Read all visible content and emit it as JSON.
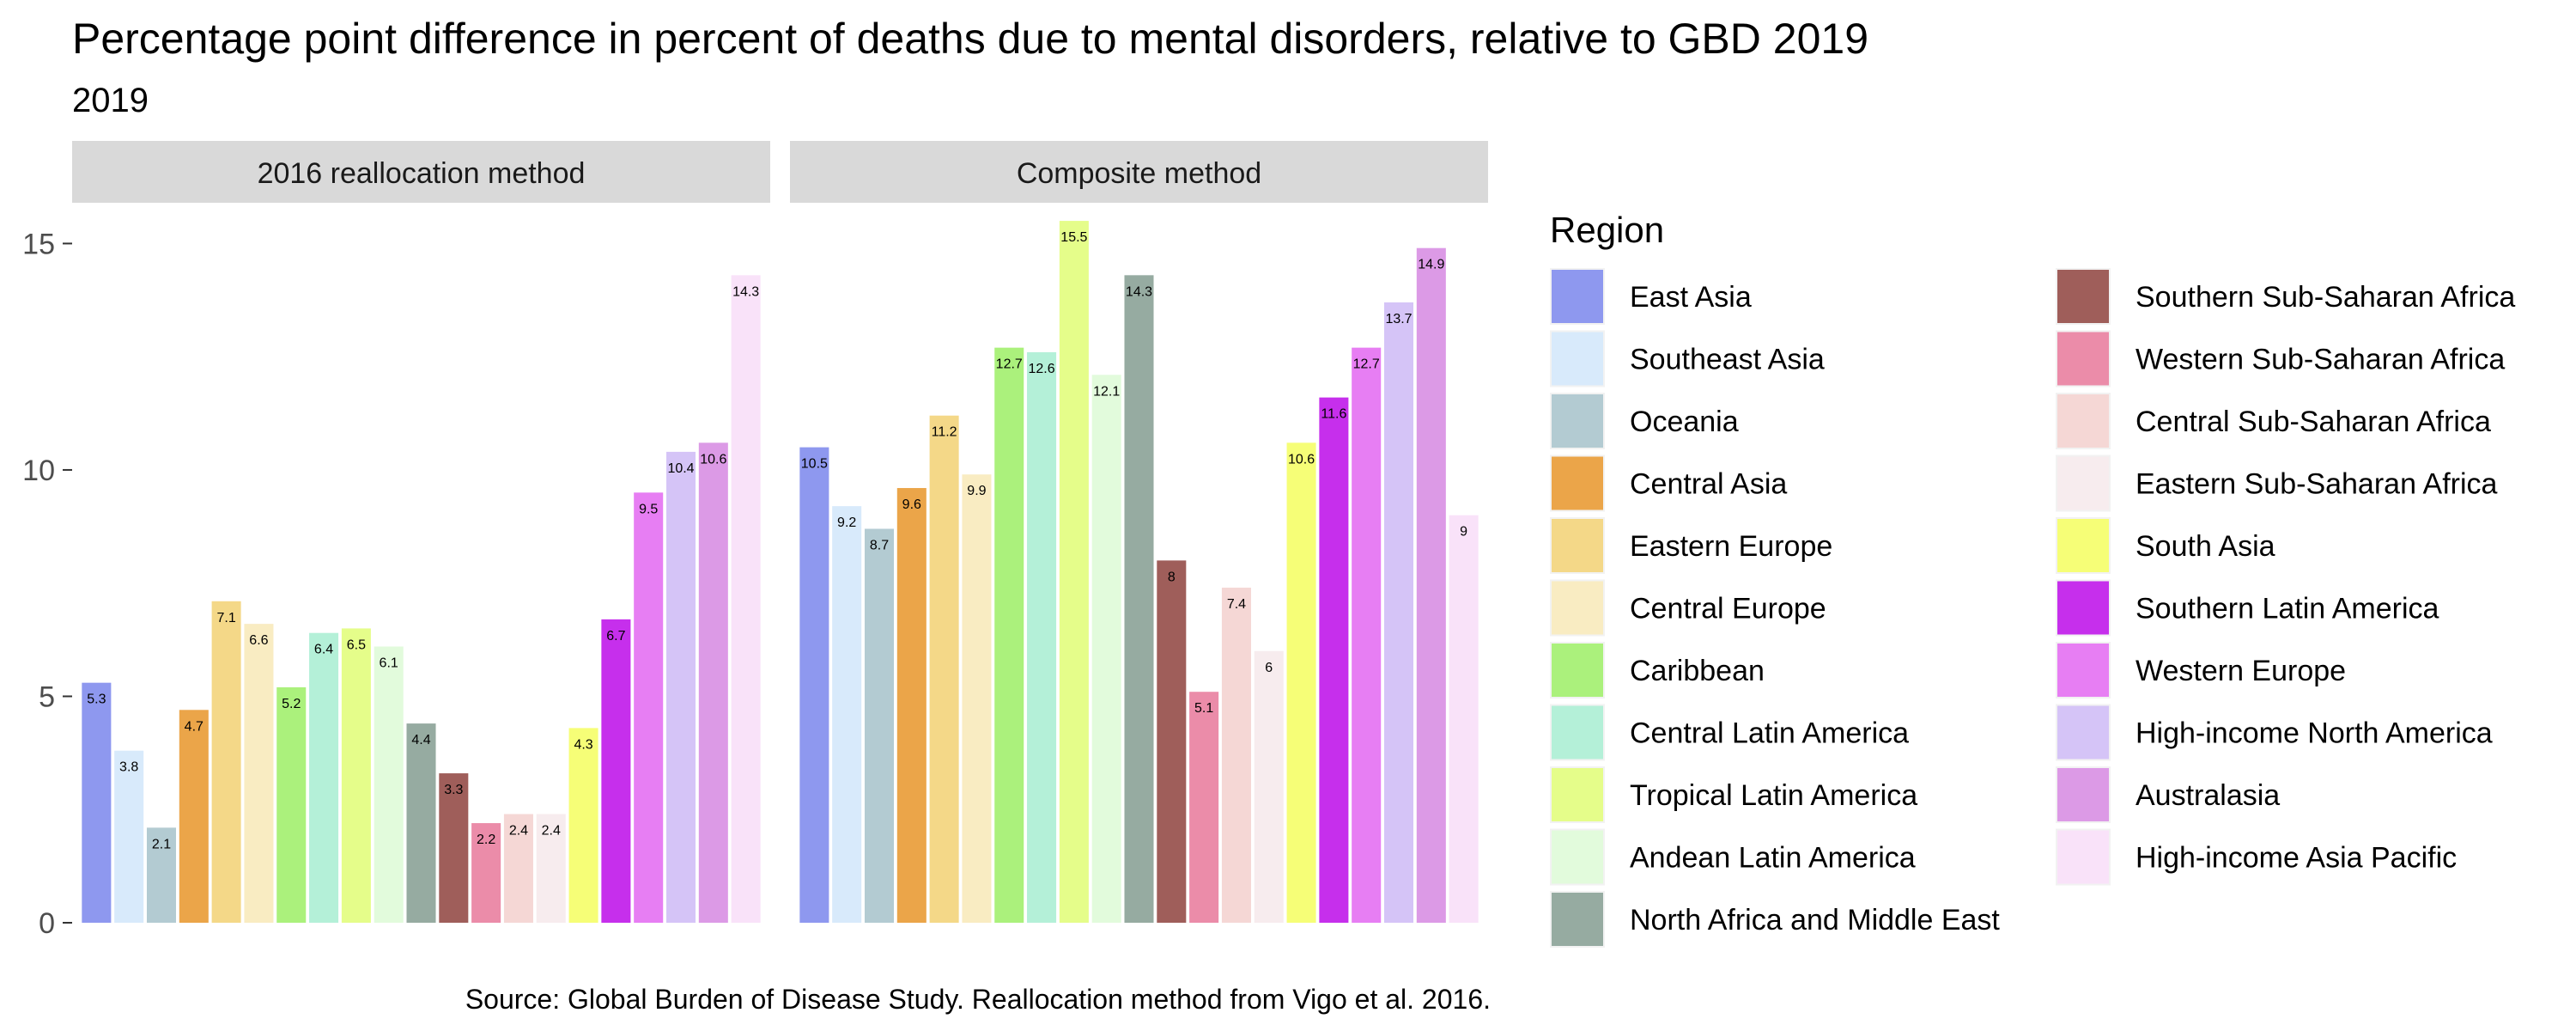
{
  "chart_data": {
    "type": "bar",
    "title": "Percentage point difference in percent of deaths due to mental disorders, relative to GBD 2019",
    "subtitle": "2019",
    "caption": "Source: Global Burden of Disease Study. Reallocation method from Vigo et al. 2016.",
    "ylim": [
      0,
      15.9
    ],
    "yticks": [
      0,
      5,
      10,
      15
    ],
    "grid": false,
    "legend": {
      "title": "Region",
      "placement": "right"
    },
    "categories": [
      "East Asia",
      "Southeast Asia",
      "Oceania",
      "Central Asia",
      "Eastern Europe",
      "Central Europe",
      "Caribbean",
      "Central Latin America",
      "Tropical Latin America",
      "Andean Latin America",
      "North Africa and Middle East",
      "Southern Sub-Saharan Africa",
      "Western Sub-Saharan Africa",
      "Central Sub-Saharan Africa",
      "Eastern Sub-Saharan Africa",
      "South Asia",
      "Southern Latin America",
      "Western Europe",
      "High-income North America",
      "Australasia",
      "High-income Asia Pacific"
    ],
    "colors": [
      "#8e98ef",
      "#d8eafb",
      "#b3cbd2",
      "#eba549",
      "#f4d888",
      "#f9ecc2",
      "#abf17c",
      "#b4f0d8",
      "#e5fd8a",
      "#e2fbdc",
      "#96aba1",
      "#9f5e5a",
      "#eb8ca9",
      "#f5d7d5",
      "#f7ecee",
      "#f6fe77",
      "#c62fec",
      "#e77ef3",
      "#d5c4f7",
      "#dc9ae6",
      "#f9e2f9"
    ],
    "panels": [
      {
        "name": "2016 reallocation method",
        "values": [
          5.3,
          3.8,
          2.1,
          4.7,
          7.1,
          6.6,
          5.2,
          6.4,
          6.5,
          6.1,
          4.4,
          3.3,
          2.2,
          2.4,
          2.4,
          4.3,
          6.7,
          9.5,
          10.4,
          10.6,
          14.3
        ],
        "labels": [
          "5.3",
          "3.8",
          "2.1",
          "4.7",
          "7.1",
          "6.6",
          "5.2",
          "6.4",
          "6.5",
          "6.1",
          "4.4",
          "3.3",
          "2.2",
          "2.4",
          "2.4",
          "4.3",
          "6.7",
          "9.5",
          "10.4",
          "10.6",
          "14.3"
        ]
      },
      {
        "name": "Composite method",
        "values": [
          10.5,
          9.2,
          8.7,
          9.6,
          11.2,
          9.9,
          12.7,
          12.6,
          15.5,
          12.1,
          14.3,
          8,
          5.1,
          7.4,
          6,
          10.6,
          11.6,
          12.7,
          13.7,
          14.9,
          9
        ],
        "labels": [
          "10.5",
          "9.2",
          "8.7",
          "9.6",
          "11.2",
          "9.9",
          "12.7",
          "12.6",
          "15.5",
          "12.1",
          "14.3",
          "8",
          "5.1",
          "7.4",
          "6",
          "10.6",
          "11.6",
          "12.7",
          "13.7",
          "14.9",
          "9"
        ]
      }
    ]
  }
}
